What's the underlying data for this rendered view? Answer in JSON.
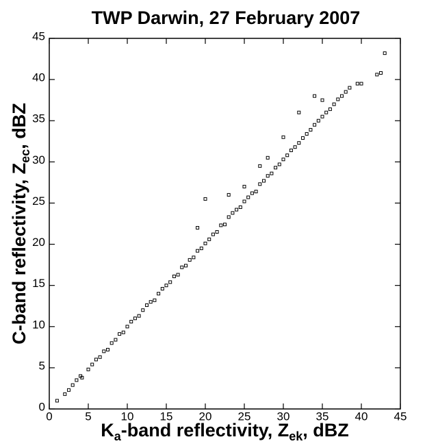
{
  "chart_data": {
    "type": "scatter",
    "title": "TWP Darwin, 27 February 2007",
    "xlabel": [
      "K",
      "a",
      "-band reflectivity, Z",
      "ek",
      ",  dBZ"
    ],
    "ylabel": [
      "C-band reflectivity, Z",
      "ec",
      ",  dBZ"
    ],
    "color": "#000000",
    "xlim": [
      0,
      45
    ],
    "ylim": [
      0,
      45
    ],
    "xticks": [
      0,
      5,
      10,
      15,
      20,
      25,
      30,
      35,
      40,
      45
    ],
    "yticks": [
      0,
      5,
      10,
      15,
      20,
      25,
      30,
      35,
      40,
      45
    ],
    "x": [
      1,
      2,
      2.5,
      3,
      3.5,
      4,
      4.2,
      5,
      5.5,
      6,
      6.5,
      7,
      7.5,
      8,
      8.5,
      9,
      9.5,
      10,
      10.5,
      11,
      11.5,
      12,
      12.5,
      13,
      13.5,
      14,
      14.5,
      15,
      15.5,
      16,
      16.5,
      17,
      17.5,
      18,
      18.5,
      19,
      19.5,
      20,
      20.5,
      21,
      21.5,
      22,
      22.5,
      23,
      23.5,
      24,
      24.5,
      25,
      25.5,
      26,
      26.5,
      27,
      27.5,
      28,
      28.5,
      29,
      29.5,
      30,
      30.5,
      31,
      31.5,
      32,
      32.5,
      33,
      33.5,
      34,
      34.5,
      35,
      35.5,
      36,
      36.5,
      37,
      37.5,
      38,
      38.5,
      39.5,
      40,
      42,
      42.5,
      43,
      20,
      28,
      30,
      34,
      32,
      23,
      27,
      35,
      19,
      25
    ],
    "y": [
      1,
      1.8,
      2.3,
      2.9,
      3.5,
      4,
      3.8,
      4.8,
      5.4,
      6,
      6.3,
      7,
      7.2,
      8,
      8.4,
      9.1,
      9.3,
      10,
      10.6,
      11,
      11.3,
      12,
      12.6,
      13,
      13.2,
      14,
      14.6,
      15,
      15.4,
      16.1,
      16.3,
      17.2,
      17.4,
      18.1,
      18.4,
      19.2,
      19.5,
      20.1,
      20.6,
      21.2,
      21.5,
      22.3,
      22.4,
      23.3,
      23.8,
      24.2,
      24.5,
      25.2,
      25.7,
      26.2,
      26.4,
      27.3,
      27.7,
      28.3,
      28.6,
      29.3,
      29.7,
      30.3,
      30.8,
      31.4,
      31.8,
      32.3,
      32.9,
      33.4,
      33.9,
      34.5,
      35,
      35.5,
      36,
      36.4,
      37,
      37.6,
      38,
      38.5,
      39,
      39.5,
      39.5,
      40.6,
      40.8,
      43.2,
      25.5,
      30.5,
      33,
      38,
      36,
      26,
      29.5,
      37.5,
      22,
      27
    ]
  }
}
